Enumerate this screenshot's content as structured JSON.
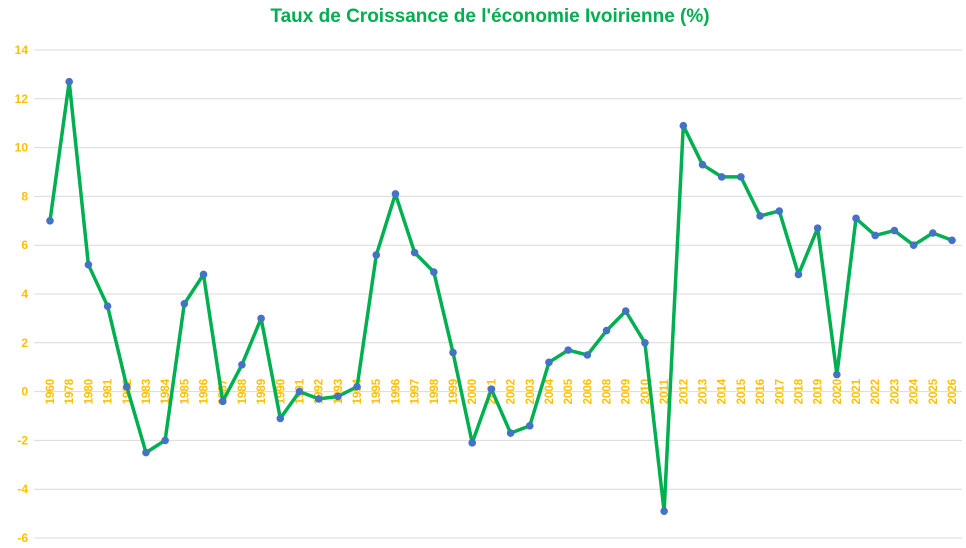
{
  "colors": {
    "title": "#00b050",
    "line": "#00b050",
    "marker": "#4472c4",
    "tick_labels": "#ffc000",
    "grid": "#d9d9d9"
  },
  "chart_data": {
    "type": "line",
    "title": "Taux de Croissance de l'économie Ivoirienne (%)",
    "xlabel": "",
    "ylabel": "",
    "ylim": [
      -6,
      14
    ],
    "yticks": [
      -6,
      -4,
      -2,
      0,
      2,
      4,
      6,
      8,
      10,
      12,
      14
    ],
    "grid": true,
    "legend": "none",
    "categories": [
      "1960",
      "1978",
      "1980",
      "1981",
      "1982",
      "1983",
      "1984",
      "1985",
      "1986",
      "1987",
      "1988",
      "1989",
      "1990",
      "1991",
      "1992",
      "1993",
      "1994",
      "1995",
      "1996",
      "1997",
      "1998",
      "1999",
      "2000",
      "2001",
      "2002",
      "2003",
      "2004",
      "2005",
      "2006",
      "2008",
      "2009",
      "2010",
      "2011",
      "2012",
      "2013",
      "2014",
      "2015",
      "2016",
      "2017",
      "2018",
      "2019",
      "2020",
      "2021",
      "2022",
      "2023",
      "2024",
      "2025",
      "2026"
    ],
    "series": [
      {
        "values": [
          7.0,
          12.7,
          5.2,
          3.5,
          0.2,
          -2.5,
          -2.0,
          3.6,
          4.8,
          -0.4,
          1.1,
          3.0,
          -1.1,
          0.0,
          -0.3,
          -0.2,
          0.2,
          5.6,
          8.1,
          5.7,
          4.9,
          1.6,
          -2.1,
          0.1,
          -1.7,
          -1.4,
          1.2,
          1.7,
          1.5,
          2.5,
          3.3,
          2.0,
          -4.9,
          10.9,
          9.3,
          8.8,
          8.8,
          7.2,
          7.4,
          4.8,
          6.7,
          0.7,
          7.1,
          6.4,
          6.6,
          6.0,
          6.5,
          6.2
        ]
      }
    ]
  }
}
